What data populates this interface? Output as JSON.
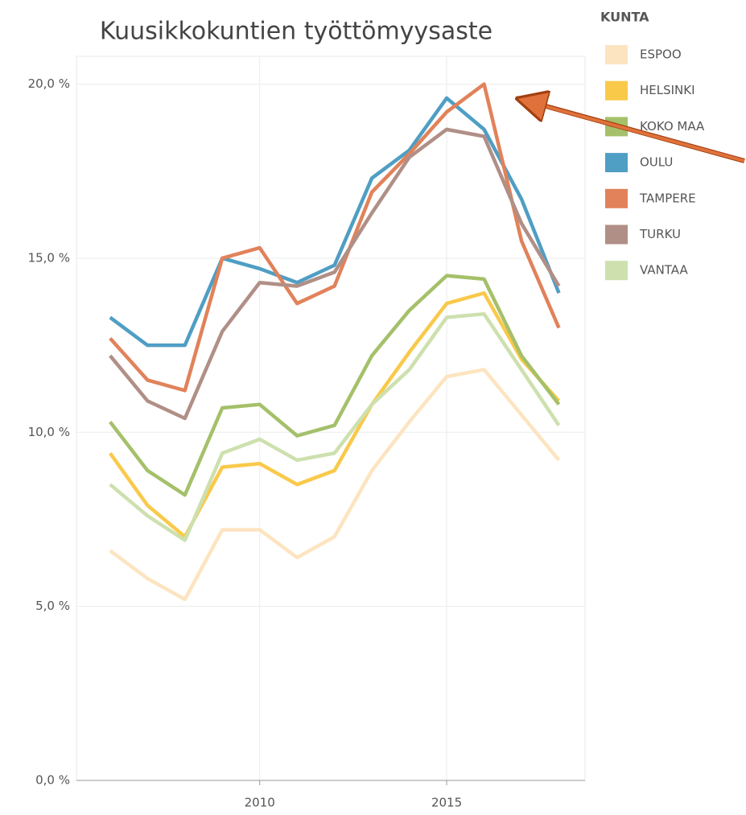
{
  "chart_data": {
    "type": "line",
    "title": "Kuusikkokuntien työttömyysaste",
    "legend_title": "KUNTA",
    "legend": "right",
    "x": [
      2006,
      2007,
      2008,
      2009,
      2010,
      2011,
      2012,
      2013,
      2014,
      2015,
      2016,
      2017,
      2018
    ],
    "xlim": [
      2005.1,
      2018.7
    ],
    "xticks": [
      2010,
      2015
    ],
    "ylim": [
      0,
      20.8
    ],
    "yticks": [
      {
        "value": 0,
        "label": "0,0 %"
      },
      {
        "value": 5,
        "label": "5,0 %"
      },
      {
        "value": 10,
        "label": "10,0 %"
      },
      {
        "value": 15,
        "label": "15,0 %"
      },
      {
        "value": 20,
        "label": "20,0 %"
      }
    ],
    "grid": true,
    "series": [
      {
        "name": "ESPOO",
        "color": "#fde4c0",
        "values": [
          6.6,
          5.8,
          5.2,
          7.2,
          7.2,
          6.4,
          7.0,
          8.9,
          10.3,
          11.6,
          11.8,
          10.5,
          9.2
        ]
      },
      {
        "name": "HELSINKI",
        "color": "#f9c94a",
        "values": [
          9.4,
          7.9,
          7.0,
          9.0,
          9.1,
          8.5,
          8.9,
          10.8,
          12.3,
          13.7,
          14.0,
          12.1,
          10.9
        ]
      },
      {
        "name": "KOKO MAA",
        "color": "#a5c06a",
        "values": [
          10.3,
          8.9,
          8.2,
          10.7,
          10.8,
          9.9,
          10.2,
          12.2,
          13.5,
          14.5,
          14.4,
          12.2,
          10.8
        ]
      },
      {
        "name": "OULU",
        "color": "#4f9ec4",
        "values": [
          13.3,
          12.5,
          12.5,
          15.0,
          14.7,
          14.3,
          14.8,
          17.3,
          18.1,
          19.6,
          18.7,
          16.7,
          14.0
        ]
      },
      {
        "name": "TAMPERE",
        "color": "#e1825a",
        "values": [
          12.7,
          11.5,
          11.2,
          15.0,
          15.3,
          13.7,
          14.2,
          16.9,
          18.0,
          19.2,
          20.0,
          15.5,
          13.0
        ]
      },
      {
        "name": "TURKU",
        "color": "#b08f86",
        "values": [
          12.2,
          10.9,
          10.4,
          12.9,
          14.3,
          14.2,
          14.6,
          16.3,
          17.9,
          18.7,
          18.5,
          16.0,
          14.2
        ]
      },
      {
        "name": "VANTAA",
        "color": "#cde0ae",
        "values": [
          8.5,
          7.6,
          6.9,
          9.4,
          9.8,
          9.2,
          9.4,
          10.8,
          11.8,
          13.3,
          13.4,
          11.8,
          10.2
        ]
      }
    ]
  }
}
